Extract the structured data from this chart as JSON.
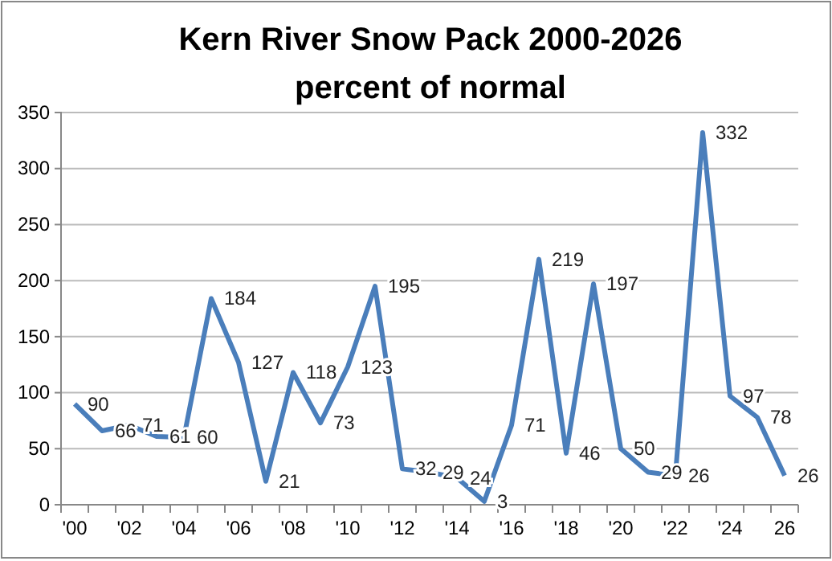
{
  "chart_data": {
    "type": "line",
    "title": "Kern River Snow Pack 2000-2026",
    "subtitle": "percent of normal",
    "categories": [
      "'00",
      null,
      "'02",
      null,
      "'04",
      null,
      "'06",
      null,
      "'08",
      null,
      "'10",
      null,
      "'12",
      null,
      "'14",
      null,
      "'16",
      null,
      "'18",
      null,
      "'20",
      null,
      "'22",
      null,
      "'24",
      null,
      "26"
    ],
    "series": [
      {
        "color": "#4a7ebb",
        "values": [
          90,
          66,
          71,
          61,
          60,
          184,
          127,
          21,
          118,
          73,
          123,
          195,
          32,
          29,
          24,
          3,
          71,
          219,
          46,
          197,
          50,
          29,
          26,
          332,
          97,
          78,
          26
        ]
      }
    ],
    "ylim": [
      0,
      350
    ],
    "yticks": [
      0,
      50,
      100,
      150,
      200,
      250,
      300,
      350
    ],
    "grid": "y",
    "data_labels": true,
    "marker": "none",
    "line_style": "solid"
  }
}
